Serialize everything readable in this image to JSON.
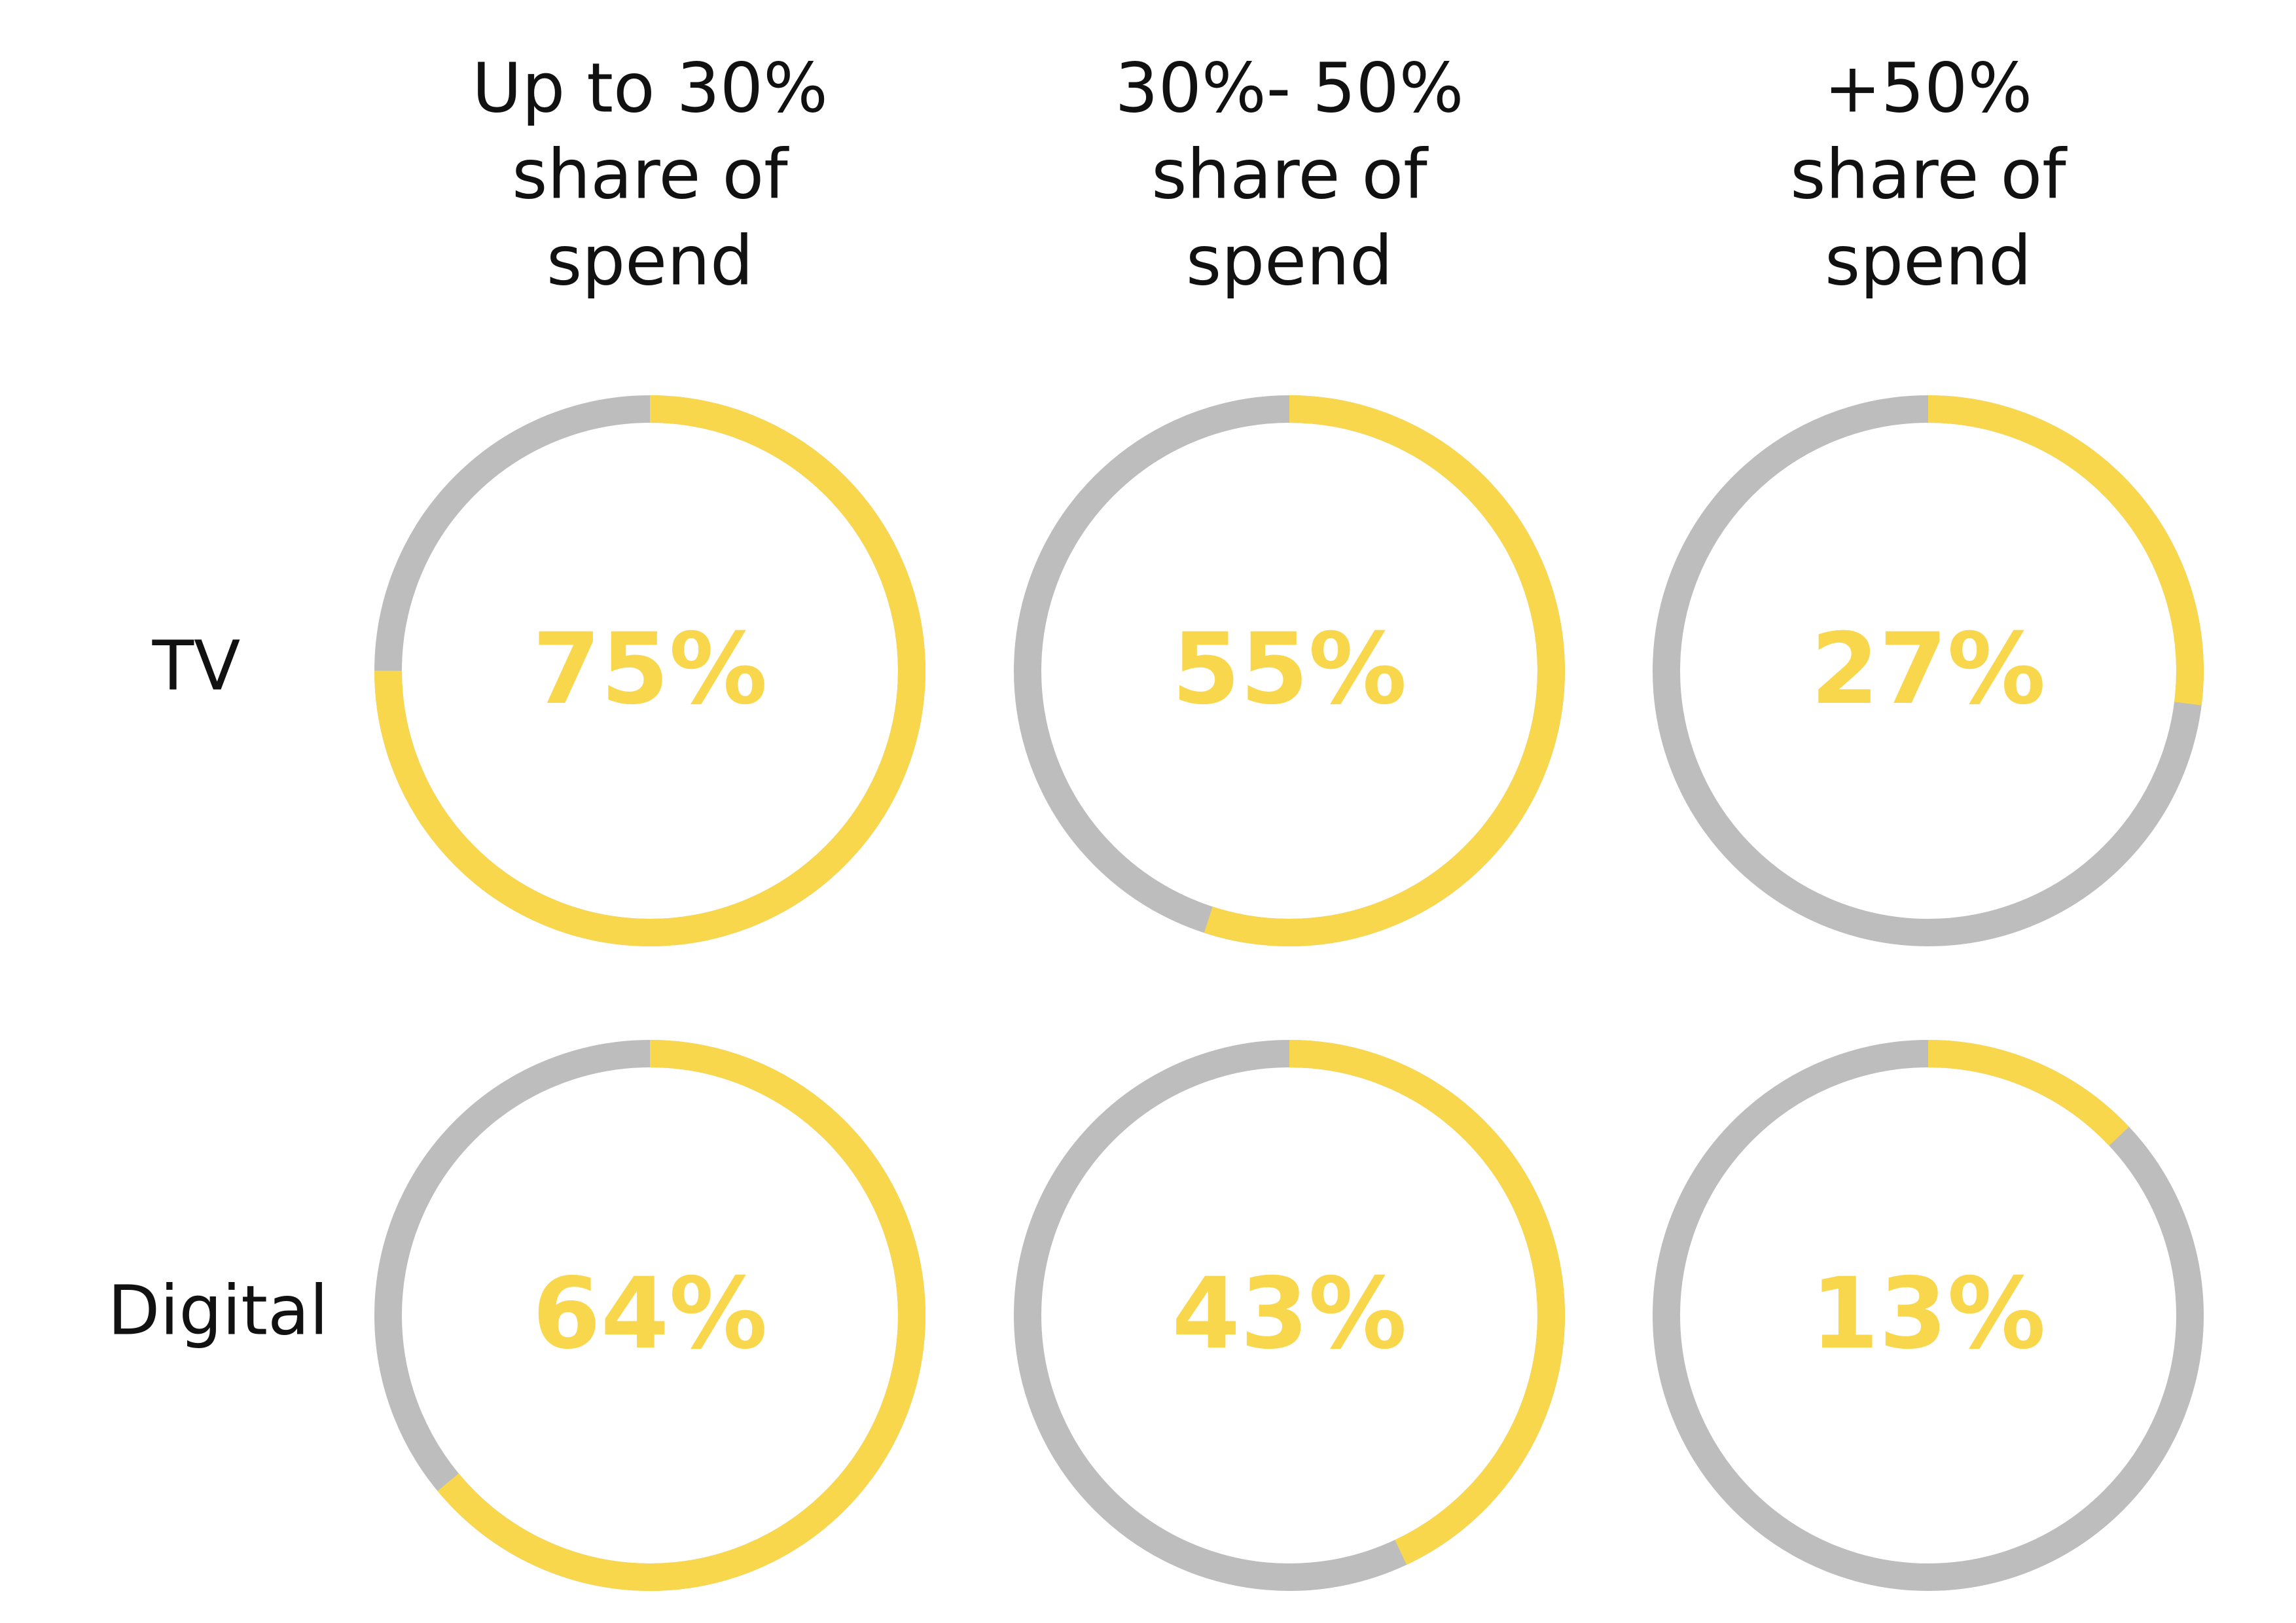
{
  "chart_data": {
    "type": "donut",
    "columns": [
      {
        "label": [
          "Up to 30%",
          "share of",
          "spend"
        ]
      },
      {
        "label": [
          "30%- 50%",
          "share of",
          "spend"
        ]
      },
      {
        "label": [
          "+50%",
          "share of",
          "spend"
        ]
      }
    ],
    "rows": [
      "TV",
      "Digital"
    ],
    "values": [
      [
        75,
        55,
        27
      ],
      [
        64,
        43,
        13
      ]
    ],
    "value_labels": [
      [
        "75%",
        "55%",
        "27%"
      ],
      [
        "64%",
        "43%",
        "13%"
      ]
    ],
    "value_range": [
      0,
      100
    ],
    "colors": {
      "highlight": "#F9D74C",
      "remainder": "#BDBDBD",
      "text": "#111111"
    }
  }
}
